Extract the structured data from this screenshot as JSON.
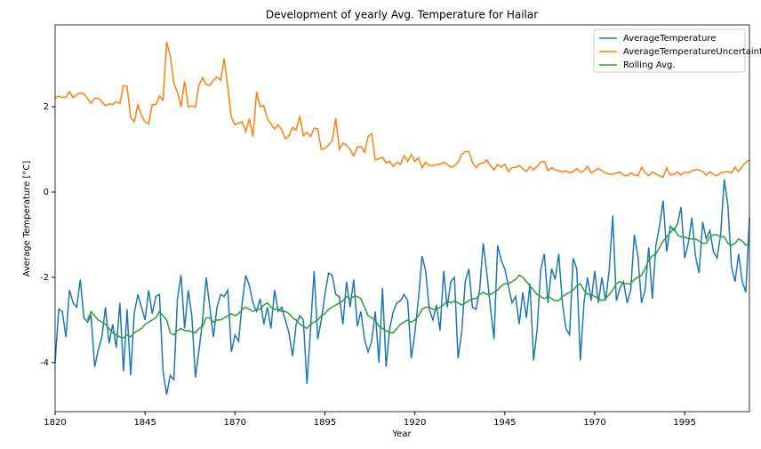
{
  "chart_data": {
    "type": "line",
    "title": "Development of yearly Avg. Temperature for Hailar",
    "x_label": "Year",
    "y_label": "Average Temperature [°C]",
    "x": [
      1820,
      1821,
      1822,
      1823,
      1824,
      1825,
      1826,
      1827,
      1828,
      1829,
      1830,
      1831,
      1832,
      1833,
      1834,
      1835,
      1836,
      1837,
      1838,
      1839,
      1840,
      1841,
      1842,
      1843,
      1844,
      1845,
      1846,
      1847,
      1848,
      1849,
      1850,
      1851,
      1852,
      1853,
      1854,
      1855,
      1856,
      1857,
      1858,
      1859,
      1860,
      1861,
      1862,
      1863,
      1864,
      1865,
      1866,
      1867,
      1868,
      1869,
      1870,
      1871,
      1872,
      1873,
      1874,
      1875,
      1876,
      1877,
      1878,
      1879,
      1880,
      1881,
      1882,
      1883,
      1884,
      1885,
      1886,
      1887,
      1888,
      1889,
      1890,
      1891,
      1892,
      1893,
      1894,
      1895,
      1896,
      1897,
      1898,
      1899,
      1900,
      1901,
      1902,
      1903,
      1904,
      1905,
      1906,
      1907,
      1908,
      1909,
      1910,
      1911,
      1912,
      1913,
      1914,
      1915,
      1916,
      1917,
      1918,
      1919,
      1920,
      1921,
      1922,
      1923,
      1924,
      1925,
      1926,
      1927,
      1928,
      1929,
      1930,
      1931,
      1932,
      1933,
      1934,
      1935,
      1936,
      1937,
      1938,
      1939,
      1940,
      1941,
      1942,
      1943,
      1944,
      1945,
      1946,
      1947,
      1948,
      1949,
      1950,
      1951,
      1952,
      1953,
      1954,
      1955,
      1956,
      1957,
      1958,
      1959,
      1960,
      1961,
      1962,
      1963,
      1964,
      1965,
      1966,
      1967,
      1968,
      1969,
      1970,
      1971,
      1972,
      1973,
      1974,
      1975,
      1976,
      1977,
      1978,
      1979,
      1980,
      1981,
      1982,
      1983,
      1984,
      1985,
      1986,
      1987,
      1988,
      1989,
      1990,
      1991,
      1992,
      1993,
      1994,
      1995,
      1996,
      1997,
      1998,
      1999,
      2000,
      2001,
      2002,
      2003,
      2004,
      2005,
      2006,
      2007,
      2008,
      2009,
      2010,
      2011,
      2012,
      2013
    ],
    "series": [
      {
        "name": "AverageTemperature",
        "color": "#1f77b4",
        "values": [
          -4.0,
          -2.75,
          -2.8,
          -3.4,
          -2.3,
          -2.6,
          -2.7,
          -2.05,
          -2.95,
          -3.05,
          -2.9,
          -4.1,
          -3.7,
          -3.4,
          -2.7,
          -3.55,
          -3.1,
          -3.65,
          -2.6,
          -4.2,
          -2.75,
          -4.3,
          -2.85,
          -2.4,
          -2.7,
          -3.0,
          -2.3,
          -2.85,
          -2.45,
          -2.4,
          -4.2,
          -4.75,
          -4.3,
          -4.4,
          -2.5,
          -1.95,
          -3.2,
          -2.3,
          -2.9,
          -4.35,
          -3.7,
          -3.0,
          -2.0,
          -2.7,
          -3.4,
          -2.7,
          -2.4,
          -2.45,
          -2.3,
          -3.75,
          -3.35,
          -3.5,
          -2.6,
          -1.95,
          -2.2,
          -2.6,
          -2.8,
          -2.5,
          -3.1,
          -2.7,
          -3.2,
          -2.3,
          -2.8,
          -2.7,
          -3.0,
          -3.3,
          -3.85,
          -3.1,
          -2.9,
          -3.0,
          -4.5,
          -3.2,
          -1.85,
          -3.45,
          -3.0,
          -2.4,
          -1.9,
          -1.95,
          -2.4,
          -2.45,
          -3.1,
          -2.1,
          -2.7,
          -2.05,
          -3.15,
          -2.8,
          -3.45,
          -3.75,
          -3.5,
          -2.8,
          -4.0,
          -2.25,
          -4.1,
          -3.2,
          -2.8,
          -2.6,
          -2.55,
          -2.4,
          -2.55,
          -3.9,
          -3.3,
          -2.5,
          -1.5,
          -1.85,
          -2.75,
          -3.0,
          -2.65,
          -3.25,
          -1.85,
          -2.7,
          -2.1,
          -2.0,
          -3.9,
          -3.3,
          -2.1,
          -1.8,
          -2.7,
          -2.75,
          -2.3,
          -1.2,
          -1.9,
          -2.7,
          -3.45,
          -1.25,
          -1.6,
          -1.8,
          -2.2,
          -2.6,
          -2.45,
          -3.1,
          -2.35,
          -2.95,
          -2.15,
          -3.95,
          -3.2,
          -1.8,
          -1.45,
          -2.6,
          -1.8,
          -2.05,
          -1.45,
          -2.6,
          -3.2,
          -3.35,
          -1.55,
          -1.8,
          -3.95,
          -2.6,
          -2.0,
          -2.55,
          -1.85,
          -2.6,
          -2.0,
          -2.55,
          -1.85,
          -0.55,
          -2.55,
          -2.25,
          -2.1,
          -2.6,
          -2.3,
          -1.0,
          -1.5,
          -2.6,
          -2.3,
          -1.3,
          -2.5,
          -1.25,
          -0.8,
          -0.2,
          -1.4,
          -0.8,
          -0.9,
          -0.75,
          -0.35,
          -1.55,
          -1.2,
          -0.6,
          -1.5,
          -1.9,
          -0.7,
          -1.1,
          -0.9,
          -1.4,
          -1.55,
          -1.0,
          0.3,
          -0.3,
          -1.75,
          -2.1,
          -1.45,
          -2.1,
          -2.35,
          -0.6
        ]
      },
      {
        "name": "AverageTemperatureUncertainty",
        "color": "#ff7f0e",
        "values": [
          2.2,
          2.25,
          2.22,
          2.22,
          2.35,
          2.22,
          2.28,
          2.33,
          2.3,
          2.2,
          2.08,
          2.2,
          2.2,
          2.12,
          2.02,
          2.07,
          2.05,
          2.12,
          2.08,
          2.5,
          2.48,
          1.75,
          1.65,
          2.05,
          1.8,
          1.65,
          1.6,
          2.05,
          2.05,
          2.25,
          2.15,
          3.52,
          3.2,
          2.55,
          2.35,
          2.0,
          2.6,
          2.0,
          2.02,
          2.0,
          2.52,
          2.68,
          2.52,
          2.5,
          2.62,
          2.7,
          2.62,
          3.13,
          2.45,
          1.75,
          1.58,
          1.62,
          1.65,
          1.42,
          1.72,
          1.3,
          2.35,
          2.0,
          2.03,
          1.72,
          1.6,
          1.48,
          1.58,
          1.45,
          1.25,
          1.32,
          1.52,
          1.45,
          1.78,
          1.32,
          1.4,
          1.3,
          1.5,
          1.48,
          1.0,
          1.02,
          1.1,
          1.2,
          1.73,
          1.0,
          1.15,
          1.1,
          1.0,
          0.85,
          1.05,
          1.07,
          0.93,
          1.3,
          1.37,
          0.75,
          0.78,
          0.82,
          0.68,
          0.72,
          0.6,
          0.7,
          0.65,
          0.85,
          0.72,
          0.88,
          0.72,
          0.8,
          0.57,
          0.7,
          0.62,
          0.62,
          0.65,
          0.65,
          0.7,
          0.65,
          0.58,
          0.62,
          0.7,
          0.88,
          0.95,
          0.95,
          0.7,
          0.57,
          0.67,
          0.68,
          0.75,
          0.62,
          0.52,
          0.65,
          0.58,
          0.65,
          0.48,
          0.57,
          0.58,
          0.62,
          0.55,
          0.48,
          0.6,
          0.52,
          0.6,
          0.7,
          0.72,
          0.5,
          0.57,
          0.52,
          0.5,
          0.47,
          0.5,
          0.45,
          0.48,
          0.55,
          0.47,
          0.5,
          0.6,
          0.45,
          0.5,
          0.55,
          0.5,
          0.45,
          0.42,
          0.42,
          0.45,
          0.47,
          0.4,
          0.38,
          0.45,
          0.4,
          0.38,
          0.58,
          0.45,
          0.38,
          0.47,
          0.42,
          0.38,
          0.35,
          0.57,
          0.4,
          0.42,
          0.47,
          0.4,
          0.47,
          0.45,
          0.5,
          0.52,
          0.52,
          0.48,
          0.4,
          0.47,
          0.42,
          0.38,
          0.45,
          0.47,
          0.48,
          0.45,
          0.58,
          0.48,
          0.6,
          0.7,
          0.75
        ]
      },
      {
        "name": "Rolling Avg.",
        "color": "#2ca02c",
        "values": [
          null,
          null,
          null,
          null,
          null,
          null,
          null,
          null,
          null,
          -3.0,
          -2.8,
          -2.9,
          -3.0,
          -3.05,
          -3.1,
          -3.2,
          -3.3,
          -3.35,
          -3.4,
          -3.42,
          -3.35,
          -3.4,
          -3.3,
          -3.25,
          -3.2,
          -3.1,
          -3.05,
          -3.0,
          -2.95,
          -2.8,
          -2.9,
          -3.0,
          -3.3,
          -3.35,
          -3.25,
          -3.2,
          -3.25,
          -3.25,
          -3.28,
          -3.3,
          -3.2,
          -3.15,
          -2.95,
          -2.95,
          -3.05,
          -3.0,
          -3.0,
          -2.95,
          -2.9,
          -2.85,
          -2.9,
          -2.85,
          -2.75,
          -2.7,
          -2.75,
          -2.8,
          -2.75,
          -2.75,
          -2.65,
          -2.6,
          -2.7,
          -2.75,
          -2.75,
          -2.8,
          -2.8,
          -2.85,
          -2.95,
          -3.0,
          -3.1,
          -3.15,
          -3.2,
          -3.1,
          -3.05,
          -3.0,
          -2.9,
          -2.85,
          -2.75,
          -2.7,
          -2.65,
          -2.6,
          -2.55,
          -2.45,
          -2.5,
          -2.45,
          -2.45,
          -2.5,
          -2.7,
          -2.9,
          -2.95,
          -3.0,
          -3.15,
          -3.2,
          -3.25,
          -3.3,
          -3.3,
          -3.2,
          -3.1,
          -3.05,
          -3.0,
          -3.05,
          -3.0,
          -2.9,
          -2.75,
          -2.7,
          -2.7,
          -2.75,
          -2.75,
          -2.7,
          -2.65,
          -2.55,
          -2.6,
          -2.55,
          -2.6,
          -2.65,
          -2.6,
          -2.55,
          -2.5,
          -2.5,
          -2.4,
          -2.35,
          -2.4,
          -2.4,
          -2.35,
          -2.3,
          -2.2,
          -2.15,
          -2.15,
          -2.1,
          -2.05,
          -1.95,
          -2.0,
          -2.1,
          -2.2,
          -2.3,
          -2.4,
          -2.45,
          -2.5,
          -2.45,
          -2.5,
          -2.55,
          -2.55,
          -2.45,
          -2.4,
          -2.35,
          -2.3,
          -2.2,
          -2.15,
          -2.3,
          -2.4,
          -2.4,
          -2.45,
          -2.5,
          -2.55,
          -2.5,
          -2.4,
          -2.3,
          -2.15,
          -2.1,
          -2.15,
          -2.15,
          -2.15,
          -2.05,
          -2.0,
          -1.95,
          -1.8,
          -1.6,
          -1.5,
          -1.45,
          -1.3,
          -1.15,
          -1.05,
          -0.95,
          -0.85,
          -1.0,
          -1.05,
          -1.05,
          -1.1,
          -1.1,
          -1.1,
          -1.15,
          -1.2,
          -1.2,
          -1.05,
          -1.0,
          -1.0,
          -1.05,
          -1.05,
          -1.2,
          -1.25,
          -1.2,
          -1.1,
          -1.15,
          -1.25,
          -1.2
        ]
      }
    ],
    "xlim": [
      1820,
      2013
    ],
    "xticks": [
      1820,
      1845,
      1870,
      1895,
      1920,
      1945,
      1970,
      1995
    ],
    "ylim": [
      -5.15,
      3.92
    ],
    "yticks": [
      -4,
      -2,
      0,
      2
    ],
    "legend": "upper right"
  }
}
